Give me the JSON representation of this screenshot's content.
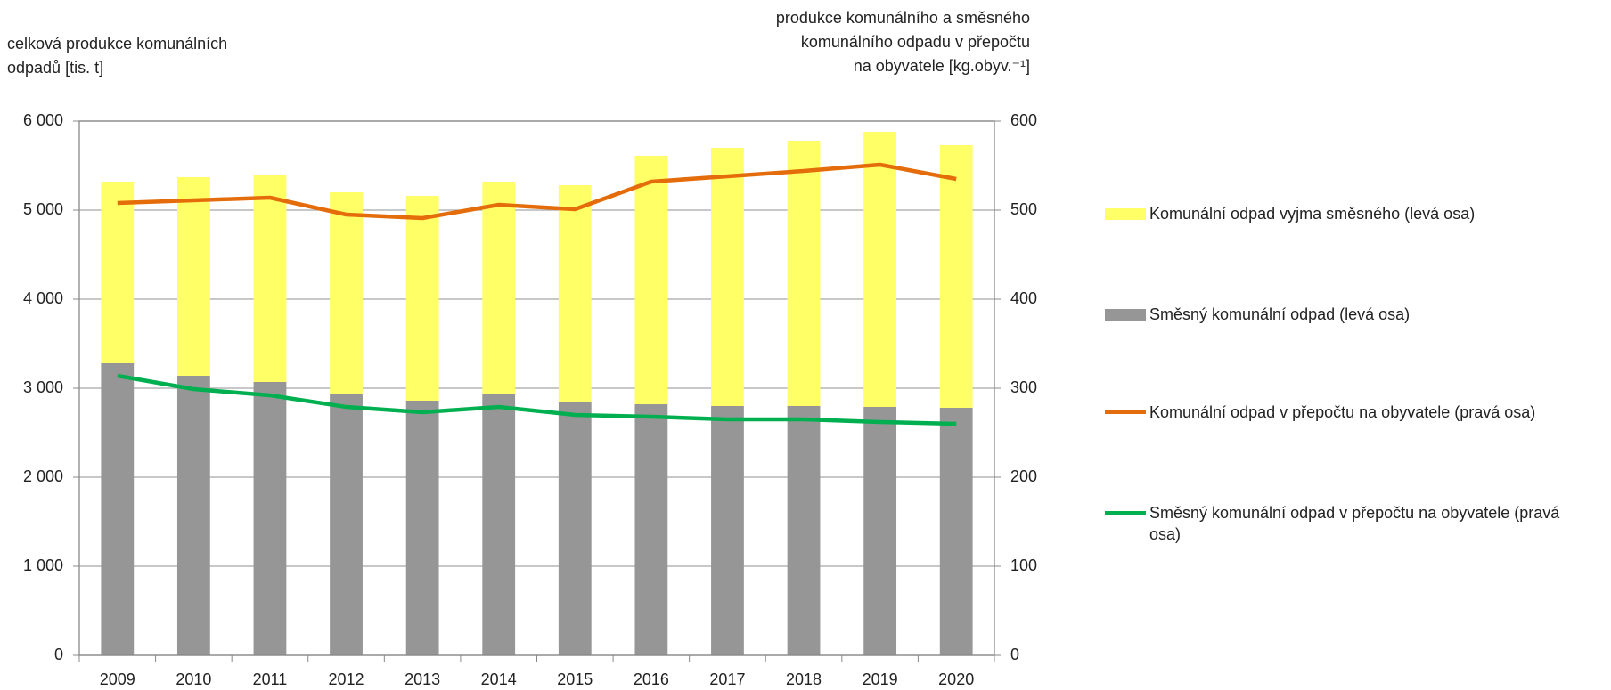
{
  "chart_data": {
    "type": "bar",
    "y_label_lines": [
      "celková produkce komunálních",
      "odpadů  [tis. t]"
    ],
    "y2_label_lines": [
      "produkce komunálního a směsného",
      "komunálního odpadu v přepočtu",
      "na obyvatele [kg.obyv.⁻¹]"
    ],
    "categories": [
      "2009",
      "2010",
      "2011",
      "2012",
      "2013",
      "2014",
      "2015",
      "2016",
      "2017",
      "2018",
      "2019",
      "2020"
    ],
    "series": [
      {
        "name": "Komunální odpad vyjma směsného (levá osa)",
        "type": "bar",
        "color": "#ffff66",
        "values": [
          2040,
          2230,
          2320,
          2260,
          2300,
          2390,
          2440,
          2790,
          2900,
          2980,
          3090,
          2950
        ]
      },
      {
        "name": "Směsný komunální odpad (levá osa)",
        "type": "bar",
        "color": "#969696",
        "values": [
          3280,
          3140,
          3070,
          2940,
          2860,
          2930,
          2840,
          2820,
          2800,
          2800,
          2790,
          2780
        ]
      },
      {
        "name": "Komunální odpad v přepočtu na obyvatele (pravá osa)",
        "type": "line",
        "axis": "y2",
        "color": "#e46c0a",
        "values": [
          508,
          511,
          514,
          495,
          491,
          506,
          501,
          532,
          538,
          544,
          551,
          535
        ]
      },
      {
        "name": "Směsný komunální odpad v přepočtu na obyvatele (pravá osa)",
        "type": "line",
        "axis": "y2",
        "color": "#00b050",
        "values": [
          314,
          299,
          292,
          279,
          273,
          279,
          270,
          268,
          265,
          265,
          262,
          260
        ]
      }
    ],
    "ylim": [
      0,
      6000
    ],
    "yticks": [
      0,
      {
        "value": 1000,
        "label": "1 000"
      },
      {
        "value": 2000,
        "label": "2 000"
      },
      {
        "value": 3000,
        "label": "3 000"
      },
      {
        "value": 4000,
        "label": "4 000"
      },
      {
        "value": 5000,
        "label": "5 000"
      },
      {
        "value": 6000,
        "label": "6 000"
      }
    ],
    "y2lim": [
      0,
      600
    ],
    "y2ticks": [
      0,
      100,
      200,
      300,
      400,
      500,
      600
    ],
    "grid": true,
    "legend": "right"
  }
}
